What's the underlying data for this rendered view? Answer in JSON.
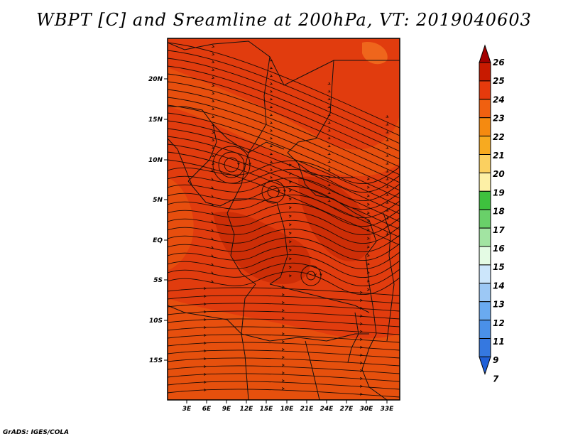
{
  "title": "WBPT [C] and Sreamline at 200hPa, VT: 2019040603",
  "footer": "GrADS: IGES/COLA",
  "map": {
    "lon_ticks": [
      "3E",
      "6E",
      "9E",
      "12E",
      "15E",
      "18E",
      "21E",
      "24E",
      "27E",
      "30E",
      "33E"
    ],
    "lat_ticks": [
      "20N",
      "15N",
      "10N",
      "5N",
      "EQ",
      "5S",
      "10S",
      "15S"
    ],
    "field_colors": {
      "dominant": "#e13c0e",
      "warm_patch": "#e8540f",
      "cool_patch": "#c82a06",
      "line": "#111111"
    }
  },
  "colorbar": {
    "labels": [
      "26",
      "25",
      "24",
      "23",
      "22",
      "21",
      "20",
      "19",
      "18",
      "17",
      "16",
      "15",
      "14",
      "13",
      "12",
      "11",
      "9",
      "7"
    ],
    "colors": [
      "#a30000",
      "#c81a00",
      "#e63a0c",
      "#f06010",
      "#f58a10",
      "#f7aa20",
      "#fbd060",
      "#fdf0a6",
      "#3ec13e",
      "#69d069",
      "#a2e4a2",
      "#e4fbe4",
      "#cce6fb",
      "#9cc8f5",
      "#6aaaf0",
      "#4a90e8",
      "#3578e0",
      "#2060d8"
    ]
  }
}
